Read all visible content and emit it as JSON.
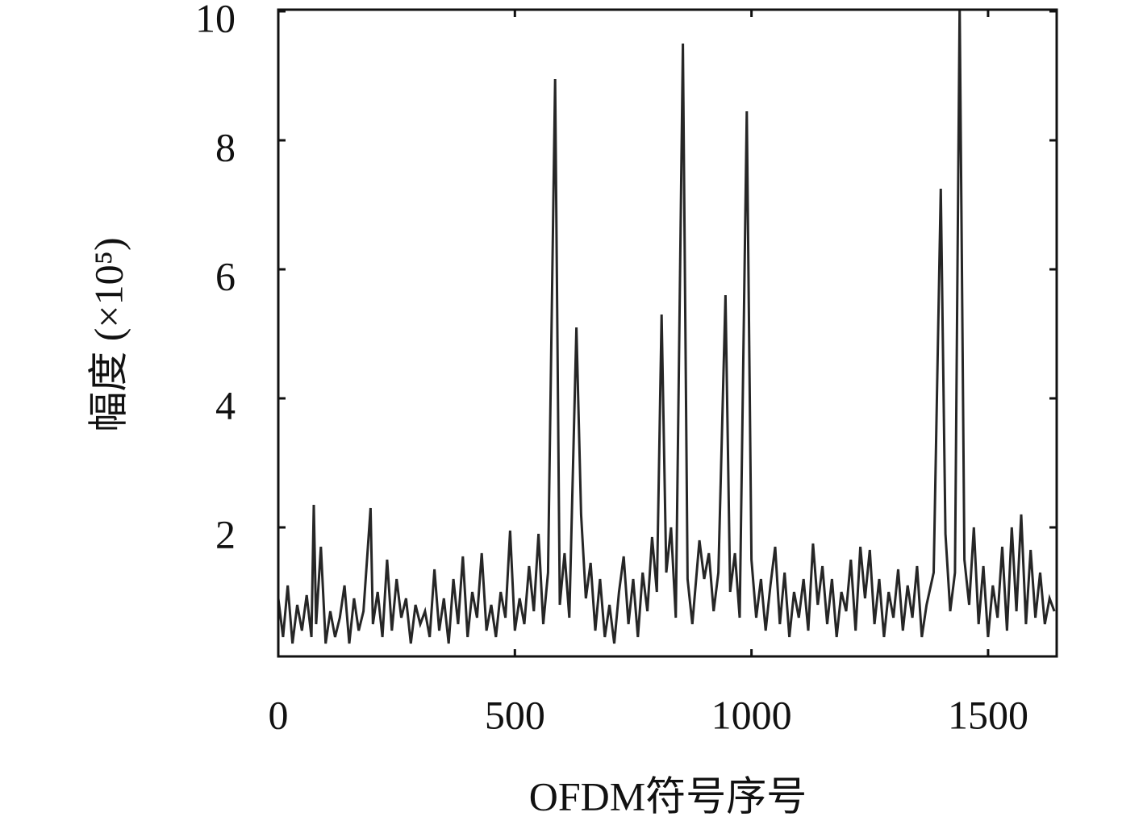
{
  "chart_data": {
    "type": "line",
    "xlabel": "OFDM符号序号",
    "ylabel": "幅度 (×10⁵)",
    "color": "#262626",
    "x": [
      0,
      10,
      20,
      30,
      40,
      50,
      60,
      70,
      75,
      80,
      90,
      100,
      110,
      120,
      130,
      140,
      150,
      160,
      170,
      180,
      195,
      200,
      210,
      220,
      230,
      240,
      250,
      260,
      270,
      280,
      290,
      300,
      310,
      320,
      330,
      340,
      350,
      360,
      370,
      380,
      390,
      400,
      410,
      420,
      430,
      440,
      450,
      460,
      470,
      480,
      490,
      500,
      510,
      520,
      530,
      540,
      550,
      560,
      570,
      585,
      595,
      605,
      615,
      630,
      640,
      650,
      660,
      670,
      680,
      690,
      700,
      710,
      720,
      730,
      740,
      750,
      760,
      770,
      780,
      790,
      800,
      810,
      820,
      830,
      840,
      855,
      865,
      875,
      890,
      900,
      910,
      920,
      930,
      945,
      955,
      965,
      975,
      990,
      1000,
      1010,
      1020,
      1030,
      1040,
      1050,
      1060,
      1070,
      1080,
      1090,
      1100,
      1110,
      1120,
      1130,
      1140,
      1150,
      1160,
      1170,
      1180,
      1190,
      1200,
      1210,
      1220,
      1230,
      1240,
      1250,
      1260,
      1270,
      1280,
      1290,
      1300,
      1310,
      1320,
      1330,
      1340,
      1350,
      1360,
      1370,
      1385,
      1400,
      1410,
      1420,
      1430,
      1440,
      1450,
      1460,
      1470,
      1480,
      1490,
      1500,
      1510,
      1520,
      1530,
      1540,
      1550,
      1560,
      1570,
      1580,
      1590,
      1600,
      1610,
      1620,
      1630,
      1640
    ],
    "values": [
      0.9,
      0.3,
      1.1,
      0.2,
      0.8,
      0.4,
      0.95,
      0.3,
      2.35,
      0.5,
      1.7,
      0.2,
      0.7,
      0.3,
      0.6,
      1.1,
      0.2,
      0.9,
      0.4,
      0.7,
      2.3,
      0.5,
      1.0,
      0.3,
      1.5,
      0.4,
      1.2,
      0.6,
      0.9,
      0.2,
      0.8,
      0.5,
      0.7,
      0.3,
      1.35,
      0.4,
      0.9,
      0.2,
      1.2,
      0.5,
      1.55,
      0.3,
      1.0,
      0.6,
      1.6,
      0.4,
      0.8,
      0.3,
      1.0,
      0.6,
      1.95,
      0.4,
      0.9,
      0.5,
      1.4,
      0.7,
      1.9,
      0.5,
      1.3,
      8.95,
      0.8,
      1.6,
      0.6,
      5.1,
      2.2,
      0.9,
      1.45,
      0.4,
      1.2,
      0.3,
      0.8,
      0.2,
      1.0,
      1.55,
      0.5,
      1.2,
      0.3,
      1.3,
      0.7,
      1.85,
      1.0,
      5.3,
      1.3,
      2.0,
      0.6,
      9.5,
      1.2,
      0.5,
      1.8,
      1.2,
      1.6,
      0.7,
      1.3,
      5.6,
      1.0,
      1.6,
      0.6,
      8.45,
      1.5,
      0.6,
      1.2,
      0.4,
      1.1,
      1.7,
      0.5,
      1.3,
      0.3,
      1.0,
      0.6,
      1.2,
      0.4,
      1.75,
      0.8,
      1.4,
      0.5,
      1.2,
      0.3,
      1.0,
      0.7,
      1.5,
      0.4,
      1.7,
      0.9,
      1.65,
      0.5,
      1.2,
      0.3,
      1.0,
      0.6,
      1.35,
      0.4,
      1.1,
      0.6,
      1.4,
      0.3,
      0.8,
      1.3,
      7.25,
      1.9,
      0.7,
      1.3,
      10.1,
      1.5,
      0.8,
      2.0,
      0.5,
      1.4,
      0.3,
      1.1,
      0.6,
      1.7,
      0.4,
      2.0,
      0.7,
      2.2,
      0.5,
      1.65,
      0.6,
      1.3,
      0.5,
      0.9,
      0.7
    ],
    "xlim": [
      0,
      1645
    ],
    "ylim": [
      0,
      10
    ],
    "xticks": [
      0,
      500,
      1000,
      1500
    ],
    "yticks": [
      2,
      4,
      6,
      8,
      10
    ]
  }
}
